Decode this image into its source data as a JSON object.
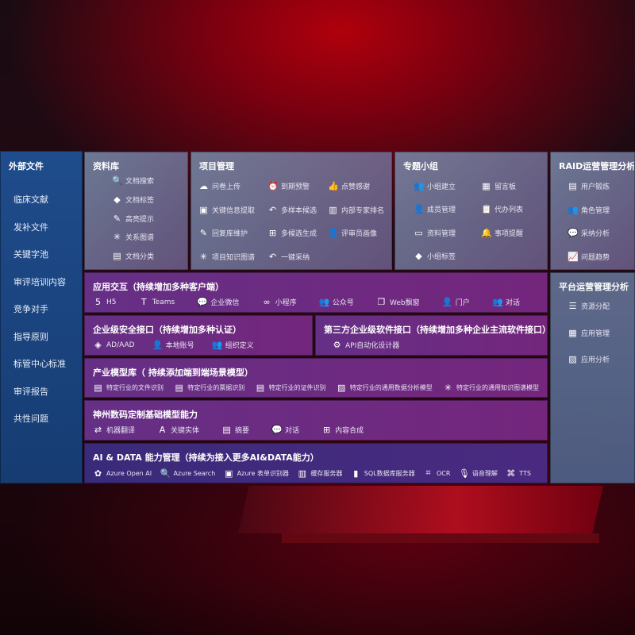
{
  "left": {
    "title": "外部文件",
    "items": [
      "临床文献",
      "发补文件",
      "关键字池",
      "审评培训内容",
      "竞争对手",
      "指导原则",
      "标管中心标准",
      "审评报告",
      "共性问题"
    ]
  },
  "library": {
    "title": "资料库",
    "items": [
      {
        "icon": "doc-search",
        "label": "文档搜索"
      },
      {
        "icon": "tag",
        "label": "文档标签"
      },
      {
        "icon": "pen",
        "label": "高亮提示"
      },
      {
        "icon": "graph",
        "label": "关系图谱"
      },
      {
        "icon": "doc-stack",
        "label": "文档分类"
      }
    ]
  },
  "project": {
    "title": "项目管理",
    "items": [
      {
        "icon": "cloud-upload",
        "label": "问卷上传"
      },
      {
        "icon": "alarm",
        "label": "到期预警"
      },
      {
        "icon": "thumbs-up",
        "label": "点赞感谢"
      },
      {
        "icon": "extract",
        "label": "关键信息提取"
      },
      {
        "icon": "reply",
        "label": "多样本候选"
      },
      {
        "icon": "ranking",
        "label": "内部专家排名"
      },
      {
        "icon": "edit",
        "label": "回复库维护"
      },
      {
        "icon": "puzzle",
        "label": "多候选生成"
      },
      {
        "icon": "user",
        "label": "评审员画像"
      },
      {
        "icon": "graph",
        "label": "项目知识图谱"
      },
      {
        "icon": "reply",
        "label": "一键采纳"
      }
    ]
  },
  "group": {
    "title": "专题小组",
    "items": [
      {
        "icon": "users",
        "label": "小组建立"
      },
      {
        "icon": "bbs",
        "label": "留言板"
      },
      {
        "icon": "user-add",
        "label": "成员管理"
      },
      {
        "icon": "clipboard",
        "label": "代办列表"
      },
      {
        "icon": "folder",
        "label": "资料管理"
      },
      {
        "icon": "bell",
        "label": "事项提醒"
      },
      {
        "icon": "tag",
        "label": "小组标签"
      }
    ]
  },
  "raid": {
    "title": "RAID运营管理分析",
    "items": [
      {
        "icon": "id-card",
        "label": "用户锻炼"
      },
      {
        "icon": "users",
        "label": "角色管理"
      },
      {
        "icon": "qa",
        "label": "采纳分析"
      },
      {
        "icon": "trend",
        "label": "问题趋势"
      }
    ]
  },
  "platform": {
    "title": "平台运营管理分析",
    "items": [
      {
        "icon": "list",
        "label": "资源分配"
      },
      {
        "icon": "apps",
        "label": "应用管理"
      },
      {
        "icon": "chart",
        "label": "应用分析"
      }
    ]
  },
  "app": {
    "title": "应用交互（持续增加多种客户端）",
    "items": [
      {
        "icon": "html5",
        "label": "H5"
      },
      {
        "icon": "teams",
        "label": "Teams"
      },
      {
        "icon": "wechat",
        "label": "企业微信"
      },
      {
        "icon": "mini-program",
        "label": "小程序"
      },
      {
        "icon": "users",
        "label": "公众号"
      },
      {
        "icon": "window",
        "label": "Web飘窗"
      },
      {
        "icon": "portal",
        "label": "门户"
      },
      {
        "icon": "chat-users",
        "label": "对话"
      }
    ]
  },
  "security": {
    "title": "企业级安全接口（持续增加多种认证）",
    "items": [
      {
        "icon": "ad",
        "label": "AD/AAD"
      },
      {
        "icon": "user-lock",
        "label": "本地账号"
      },
      {
        "icon": "org",
        "label": "组织定义"
      }
    ]
  },
  "third": {
    "title": "第三方企业级软件接口（持续增加多种企业主流软件接口）",
    "items": [
      {
        "icon": "gear",
        "label": "API自动化设计器"
      }
    ]
  },
  "industry": {
    "title": "产业模型库（ 持续添加端到端场景模型）",
    "items": [
      {
        "icon": "doc",
        "label": "特定行业的文件识别"
      },
      {
        "icon": "receipt",
        "label": "特定行业的票据识别"
      },
      {
        "icon": "id-card",
        "label": "特定行业的证件识别"
      },
      {
        "icon": "chart",
        "label": "特定行业的通用数据分析模型"
      },
      {
        "icon": "graph",
        "label": "特定行业的通用知识图谱模型"
      }
    ]
  },
  "base": {
    "title": "神州数码定制基础模型能力",
    "items": [
      {
        "icon": "translate",
        "label": "机器翻译"
      },
      {
        "icon": "entity",
        "label": "关键实体"
      },
      {
        "icon": "doc",
        "label": "摘要"
      },
      {
        "icon": "chat",
        "label": "对话"
      },
      {
        "icon": "puzzle",
        "label": "内容合成"
      }
    ]
  },
  "ai": {
    "title": "AI & DATA 能力管理（持续为接入更多AI&DATA能力）",
    "items": [
      {
        "icon": "openai",
        "label": "Azure Open AI"
      },
      {
        "icon": "search-doc",
        "label": "Azure Search"
      },
      {
        "icon": "form",
        "label": "Azure 表单识别器"
      },
      {
        "icon": "cache",
        "label": "缓存服务器"
      },
      {
        "icon": "sql",
        "label": "SQL数据库服务器"
      },
      {
        "icon": "ocr",
        "label": "OCR"
      },
      {
        "icon": "speech",
        "label": "语音理解"
      },
      {
        "icon": "tts",
        "label": "TTS"
      }
    ]
  }
}
